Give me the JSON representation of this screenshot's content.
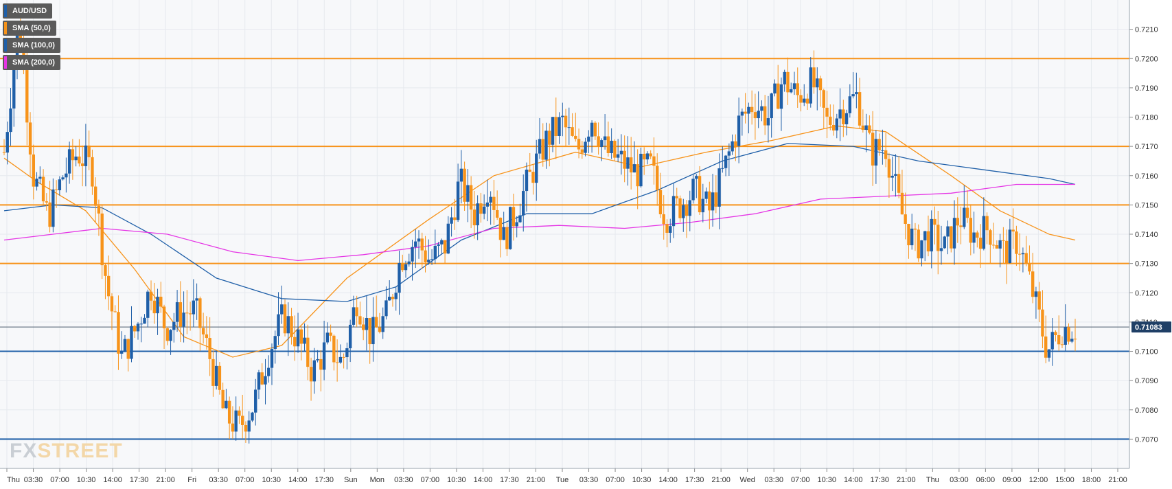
{
  "symbol": "AUD/USD",
  "indicators": [
    {
      "label": "SMA (50,0)",
      "color": "#f7931a"
    },
    {
      "label": "SMA (100,0)",
      "color": "#1f5fa8"
    },
    {
      "label": "SMA (200,0)",
      "color": "#e535e5"
    }
  ],
  "watermark": {
    "part1": "FX",
    "part2": "STREET"
  },
  "colors": {
    "up": "#1f5fa8",
    "down": "#f7931a",
    "resistance": "#f7931a",
    "support": "#1f5fa8",
    "sma50": "#f7931a",
    "sma100": "#1f5fa8",
    "sma200": "#e535e5",
    "grid": "#e6e9ee"
  },
  "chart_data": {
    "type": "candlestick",
    "ylim": [
      0.706,
      0.722
    ],
    "yticks": [
      "0.7070",
      "0.7080",
      "0.7090",
      "0.7100",
      "0.7110",
      "0.7120",
      "0.7130",
      "0.7140",
      "0.7150",
      "0.7160",
      "0.7170",
      "0.7180",
      "0.7190",
      "0.7200",
      "0.7210"
    ],
    "xticks": [
      "Thu",
      "03:30",
      "07:00",
      "10:30",
      "14:00",
      "17:30",
      "21:00",
      "Fri",
      "03:30",
      "07:00",
      "10:30",
      "14:00",
      "17:30",
      "Sun",
      "Mon",
      "03:30",
      "07:00",
      "10:30",
      "14:00",
      "17:30",
      "21:00",
      "Tue",
      "03:30",
      "07:00",
      "10:30",
      "14:00",
      "17:30",
      "21:00",
      "Wed",
      "03:30",
      "07:00",
      "10:30",
      "14:00",
      "17:30",
      "21:00",
      "Thu",
      "03:00",
      "06:00",
      "09:00",
      "12:00",
      "15:00",
      "18:00",
      "21:00"
    ],
    "current_price": "0.71083",
    "horizontal_levels": [
      {
        "price": 0.72,
        "role": "resistance"
      },
      {
        "price": 0.717,
        "role": "resistance"
      },
      {
        "price": 0.715,
        "role": "resistance"
      },
      {
        "price": 0.713,
        "role": "resistance"
      },
      {
        "price": 0.71,
        "role": "support"
      },
      {
        "price": 0.707,
        "role": "support"
      }
    ],
    "price_anchors": [
      [
        0,
        0.7168
      ],
      [
        1,
        0.7213
      ],
      [
        2,
        0.716
      ],
      [
        3,
        0.7146
      ],
      [
        4,
        0.716
      ],
      [
        5,
        0.7168
      ],
      [
        6,
        0.7162
      ],
      [
        7,
        0.7122
      ],
      [
        8,
        0.7098
      ],
      [
        9,
        0.7108
      ],
      [
        10,
        0.7122
      ],
      [
        11,
        0.7108
      ],
      [
        12,
        0.7113
      ],
      [
        13,
        0.7114
      ],
      [
        14,
        0.7098
      ],
      [
        15,
        0.7078
      ],
      [
        16,
        0.7074
      ],
      [
        17,
        0.7082
      ],
      [
        18,
        0.71
      ],
      [
        19,
        0.7112
      ],
      [
        20,
        0.7104
      ],
      [
        21,
        0.7093
      ],
      [
        22,
        0.7102
      ],
      [
        23,
        0.7096
      ],
      [
        24,
        0.7118
      ],
      [
        25,
        0.7105
      ],
      [
        26,
        0.7112
      ],
      [
        27,
        0.7132
      ],
      [
        28,
        0.7138
      ],
      [
        29,
        0.7131
      ],
      [
        30,
        0.7136
      ],
      [
        31,
        0.7158
      ],
      [
        32,
        0.7147
      ],
      [
        33,
        0.7158
      ],
      [
        34,
        0.7138
      ],
      [
        35,
        0.715
      ],
      [
        36,
        0.7162
      ],
      [
        37,
        0.7173
      ],
      [
        38,
        0.7178
      ],
      [
        39,
        0.7168
      ],
      [
        40,
        0.718
      ],
      [
        41,
        0.7168
      ],
      [
        42,
        0.7165
      ],
      [
        43,
        0.7161
      ],
      [
        44,
        0.7163
      ],
      [
        45,
        0.7146
      ],
      [
        46,
        0.715
      ],
      [
        47,
        0.7155
      ],
      [
        48,
        0.7148
      ],
      [
        49,
        0.7162
      ],
      [
        50,
        0.7178
      ],
      [
        51,
        0.7185
      ],
      [
        52,
        0.718
      ],
      [
        53,
        0.7193
      ],
      [
        54,
        0.7187
      ],
      [
        55,
        0.7192
      ],
      [
        56,
        0.7178
      ],
      [
        57,
        0.7183
      ],
      [
        58,
        0.7187
      ],
      [
        59,
        0.7168
      ],
      [
        60,
        0.717
      ],
      [
        61,
        0.7148
      ],
      [
        62,
        0.7136
      ],
      [
        63,
        0.714
      ],
      [
        64,
        0.7135
      ],
      [
        65,
        0.7146
      ],
      [
        66,
        0.714
      ],
      [
        67,
        0.7142
      ],
      [
        68,
        0.7134
      ],
      [
        69,
        0.7138
      ],
      [
        70,
        0.712
      ],
      [
        71,
        0.71
      ],
      [
        72,
        0.7108
      ]
    ],
    "sma50": [
      [
        0,
        0.7166
      ],
      [
        10,
        0.7158
      ],
      [
        25,
        0.7148
      ],
      [
        40,
        0.7128
      ],
      [
        55,
        0.7105
      ],
      [
        70,
        0.7098
      ],
      [
        85,
        0.7102
      ],
      [
        105,
        0.7125
      ],
      [
        130,
        0.7145
      ],
      [
        150,
        0.716
      ],
      [
        175,
        0.7168
      ],
      [
        195,
        0.7163
      ],
      [
        215,
        0.7168
      ],
      [
        235,
        0.7172
      ],
      [
        255,
        0.7177
      ],
      [
        270,
        0.7175
      ],
      [
        290,
        0.716
      ],
      [
        305,
        0.7148
      ],
      [
        320,
        0.714
      ],
      [
        328,
        0.7138
      ]
    ],
    "sma100": [
      [
        0,
        0.7148
      ],
      [
        15,
        0.715
      ],
      [
        30,
        0.7149
      ],
      [
        45,
        0.714
      ],
      [
        65,
        0.7125
      ],
      [
        85,
        0.7118
      ],
      [
        105,
        0.7117
      ],
      [
        120,
        0.7122
      ],
      [
        140,
        0.7138
      ],
      [
        160,
        0.7147
      ],
      [
        180,
        0.7147
      ],
      [
        200,
        0.7155
      ],
      [
        220,
        0.7165
      ],
      [
        240,
        0.7171
      ],
      [
        260,
        0.717
      ],
      [
        280,
        0.7165
      ],
      [
        300,
        0.7162
      ],
      [
        320,
        0.7159
      ],
      [
        328,
        0.7157
      ]
    ],
    "sma200": [
      [
        0,
        0.7138
      ],
      [
        15,
        0.714
      ],
      [
        30,
        0.7142
      ],
      [
        50,
        0.714
      ],
      [
        70,
        0.7134
      ],
      [
        90,
        0.7131
      ],
      [
        110,
        0.7133
      ],
      [
        130,
        0.7136
      ],
      [
        150,
        0.7142
      ],
      [
        170,
        0.7143
      ],
      [
        190,
        0.7142
      ],
      [
        210,
        0.7144
      ],
      [
        230,
        0.7147
      ],
      [
        250,
        0.7152
      ],
      [
        270,
        0.7153
      ],
      [
        290,
        0.7154
      ],
      [
        310,
        0.7157
      ],
      [
        328,
        0.7157
      ]
    ]
  }
}
